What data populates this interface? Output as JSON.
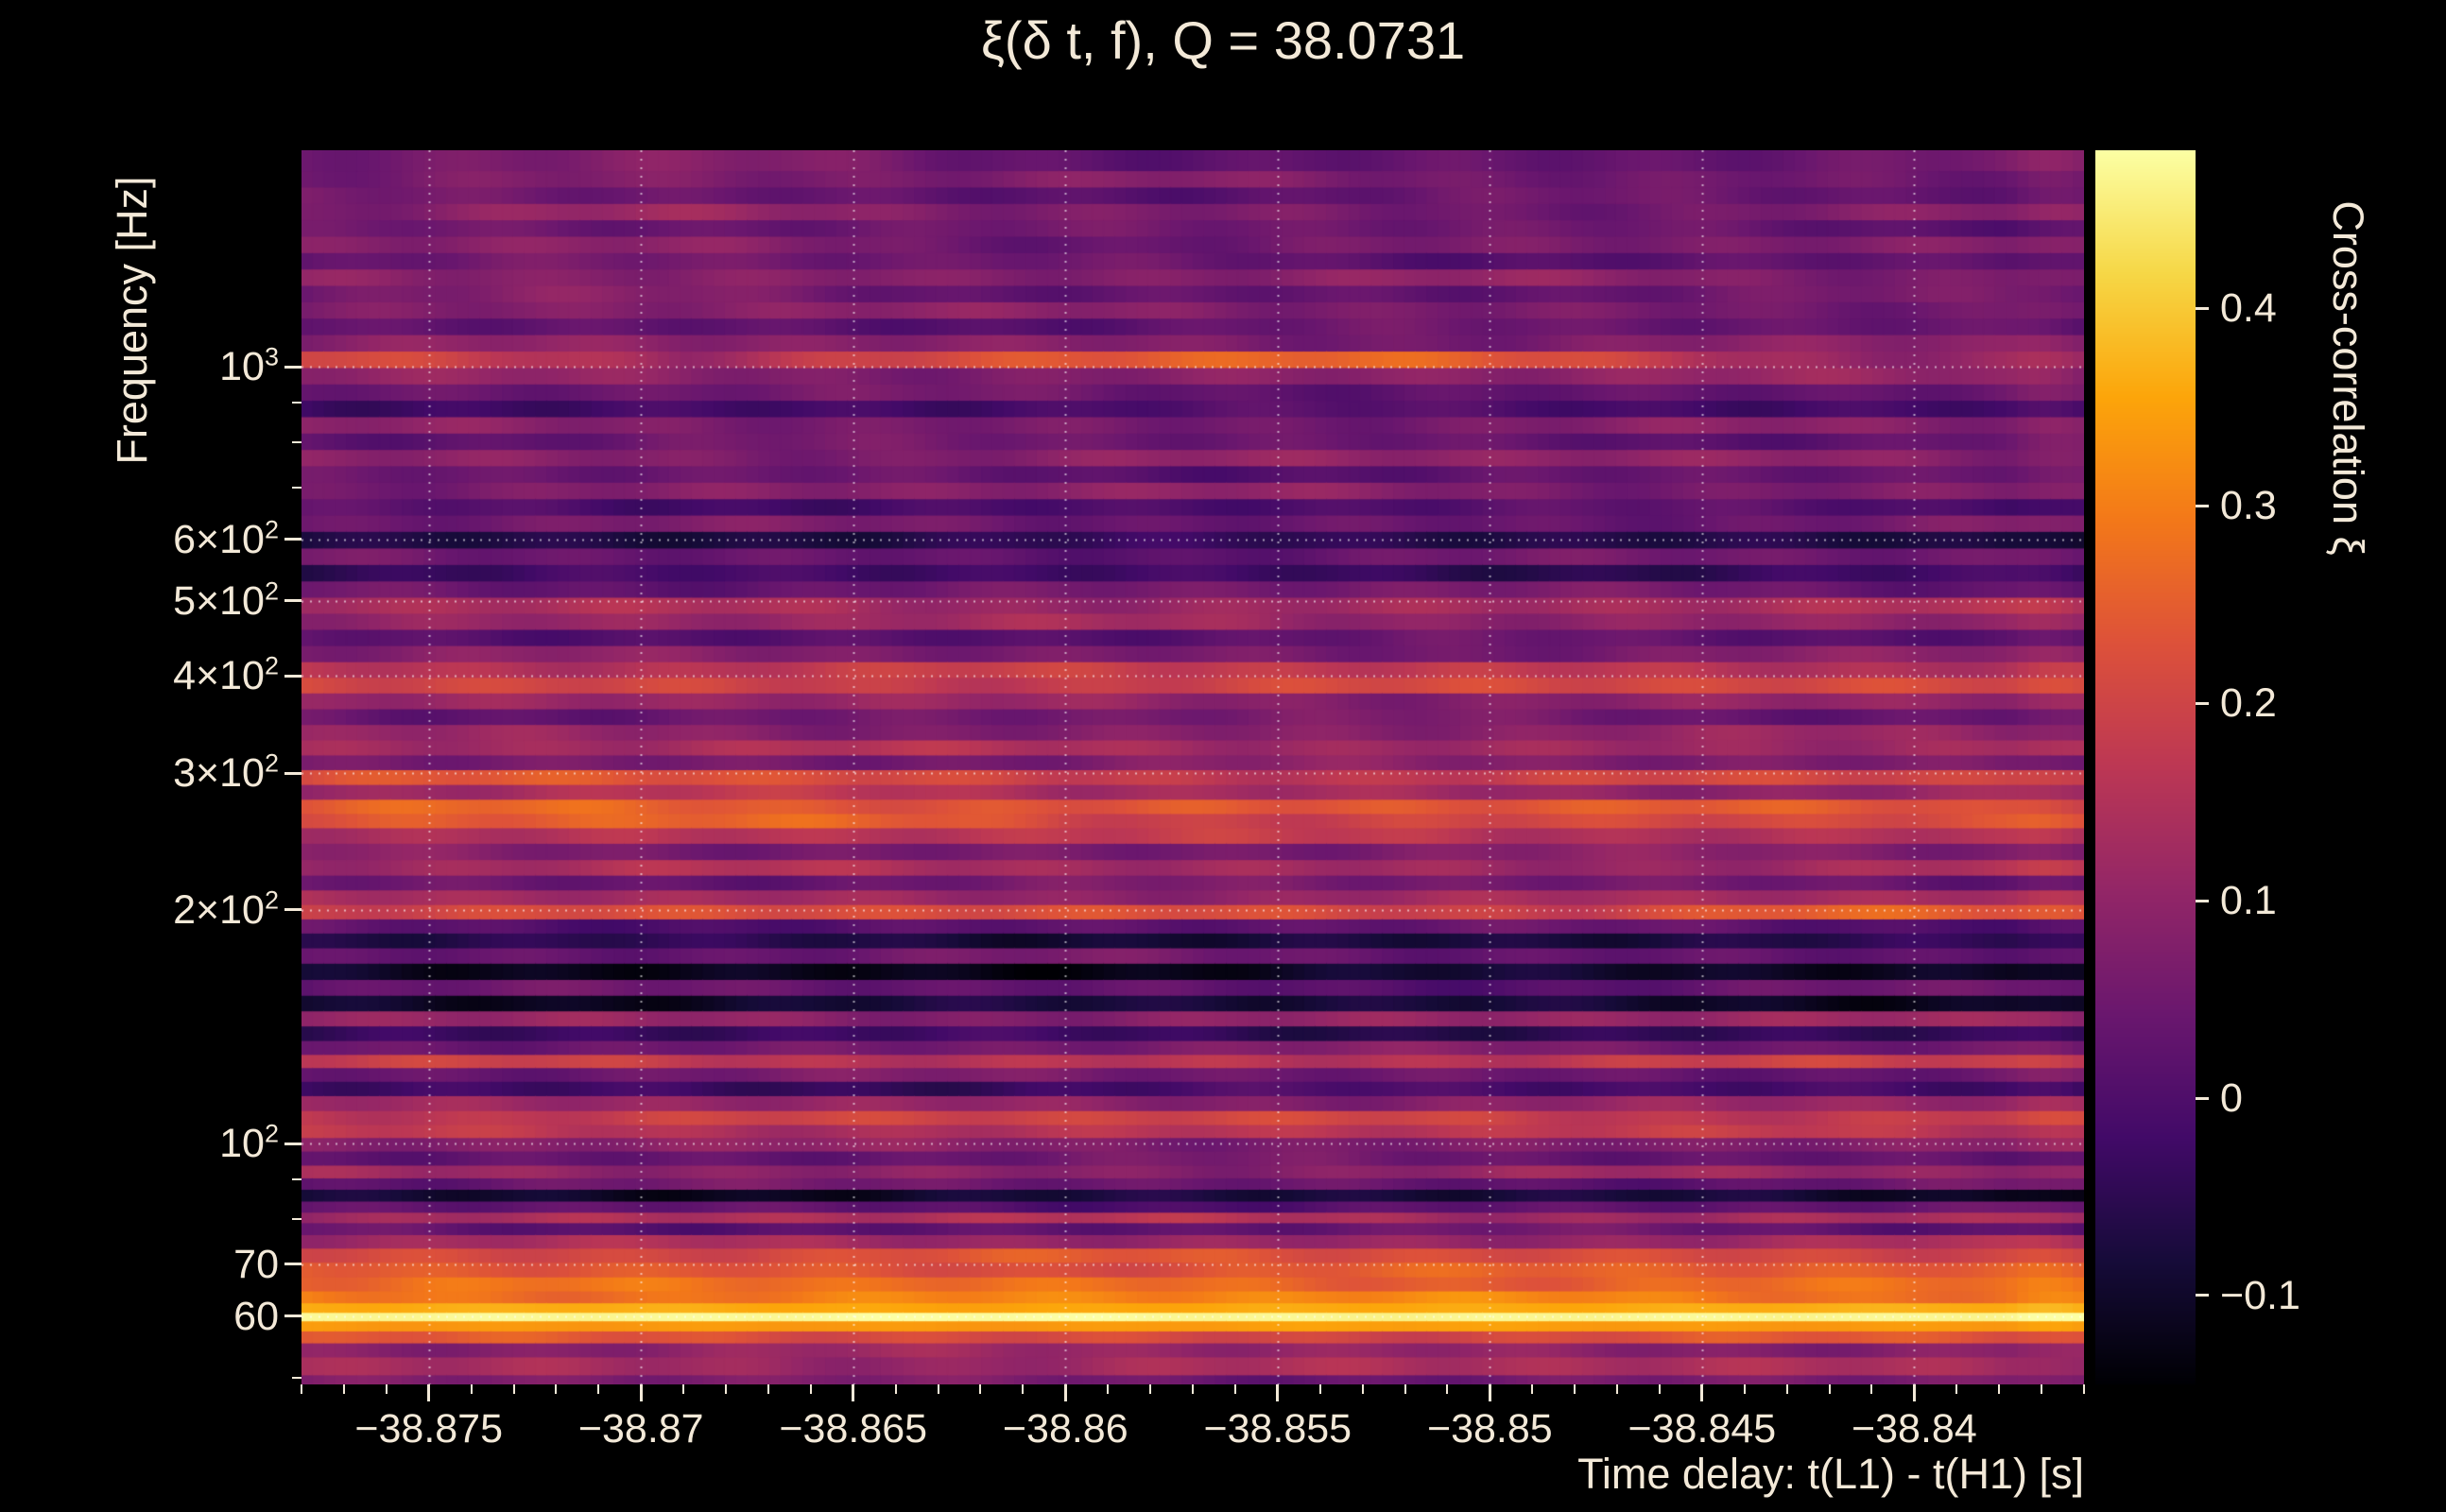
{
  "colors": {
    "background": "#000000",
    "text": "#f3e9d8",
    "grid": "rgba(255,255,255,0.62)"
  },
  "chart_data": {
    "type": "heatmap",
    "title": "ξ(δ t, f), Q = 38.0731",
    "xlabel": "Time delay: t(L1) - t(H1) [s]",
    "ylabel": "Frequency [Hz]",
    "colorbar_label": "Cross-correlation ξ",
    "xlim": [
      -38.878,
      -38.836
    ],
    "ylim": [
      49,
      1900
    ],
    "yscale": "log",
    "grid": true,
    "vmin": -0.145,
    "vmax": 0.48,
    "x_ticks": [
      {
        "v": -38.875,
        "label": "−38.875"
      },
      {
        "v": -38.87,
        "label": "−38.87"
      },
      {
        "v": -38.865,
        "label": "−38.865"
      },
      {
        "v": -38.86,
        "label": "−38.86"
      },
      {
        "v": -38.855,
        "label": "−38.855"
      },
      {
        "v": -38.85,
        "label": "−38.85"
      },
      {
        "v": -38.845,
        "label": "−38.845"
      },
      {
        "v": -38.84,
        "label": "−38.84"
      }
    ],
    "x_minor_step": 0.001,
    "y_ticks": [
      {
        "v": 1000,
        "m": "10",
        "e": "3"
      },
      {
        "v": 600,
        "m": "6×10",
        "e": "2"
      },
      {
        "v": 500,
        "m": "5×10",
        "e": "2"
      },
      {
        "v": 400,
        "m": "4×10",
        "e": "2"
      },
      {
        "v": 300,
        "m": "3×10",
        "e": "2"
      },
      {
        "v": 200,
        "m": "2×10",
        "e": "2"
      },
      {
        "v": 100,
        "m": "10",
        "e": "2"
      },
      {
        "v": 70,
        "m": "70",
        "e": ""
      },
      {
        "v": 60,
        "m": "60",
        "e": ""
      }
    ],
    "y_minor_ticks": [
      50,
      80,
      90,
      700,
      800,
      900
    ],
    "colorbar_ticks": [
      {
        "v": 0.4,
        "label": "0.4"
      },
      {
        "v": 0.3,
        "label": "0.3"
      },
      {
        "v": 0.2,
        "label": "0.2"
      },
      {
        "v": 0.1,
        "label": "0.1"
      },
      {
        "v": 0.0,
        "label": "0"
      },
      {
        "v": -0.1,
        "label": "−0.1"
      }
    ],
    "colormap": [
      [
        0.0,
        0,
        0,
        4
      ],
      [
        0.1,
        22,
        11,
        57
      ],
      [
        0.2,
        66,
        10,
        104
      ],
      [
        0.3,
        106,
        23,
        110
      ],
      [
        0.4,
        147,
        38,
        103
      ],
      [
        0.5,
        188,
        55,
        84
      ],
      [
        0.6,
        221,
        81,
        58
      ],
      [
        0.7,
        243,
        120,
        25
      ],
      [
        0.8,
        252,
        165,
        10
      ],
      [
        0.9,
        246,
        215,
        70
      ],
      [
        1.0,
        252,
        255,
        164
      ]
    ],
    "bands": [
      [
        49,
        0.06
      ],
      [
        52,
        0.13
      ],
      [
        54.5,
        0.1
      ],
      [
        56.5,
        0.22
      ],
      [
        58.5,
        0.34
      ],
      [
        60,
        0.47
      ],
      [
        61.5,
        0.36
      ],
      [
        63.5,
        0.3
      ],
      [
        66,
        0.27
      ],
      [
        69,
        0.24
      ],
      [
        72,
        0.22
      ],
      [
        75,
        0.12
      ],
      [
        78,
        0.03
      ],
      [
        80.5,
        0.14
      ],
      [
        83,
        0.02
      ],
      [
        86,
        -0.09
      ],
      [
        89,
        0.04
      ],
      [
        92,
        0.1
      ],
      [
        96,
        0.04
      ],
      [
        100,
        0.08
      ],
      [
        104,
        0.16
      ],
      [
        108,
        0.19
      ],
      [
        113,
        0.1
      ],
      [
        118,
        -0.02
      ],
      [
        123,
        0.05
      ],
      [
        128,
        0.17
      ],
      [
        133,
        0.06
      ],
      [
        139,
        -0.04
      ],
      [
        145,
        0.1
      ],
      [
        152,
        -0.09
      ],
      [
        159,
        0.03
      ],
      [
        167,
        -0.11
      ],
      [
        175,
        0.04
      ],
      [
        183,
        -0.07
      ],
      [
        191,
        0.02
      ],
      [
        199,
        0.21
      ],
      [
        208,
        0.12
      ],
      [
        217,
        0.05
      ],
      [
        227,
        0.13
      ],
      [
        238,
        0.07
      ],
      [
        250,
        0.16
      ],
      [
        261,
        0.21
      ],
      [
        272,
        0.23
      ],
      [
        284,
        0.12
      ],
      [
        297,
        0.19
      ],
      [
        310,
        0.07
      ],
      [
        324,
        0.13
      ],
      [
        339,
        0.09
      ],
      [
        355,
        0.05
      ],
      [
        372,
        0.1
      ],
      [
        390,
        0.2
      ],
      [
        408,
        0.17
      ],
      [
        428,
        0.07
      ],
      [
        449,
        0.02
      ],
      [
        471,
        0.11
      ],
      [
        494,
        0.13
      ],
      [
        518,
        0.05
      ],
      [
        544,
        -0.03
      ],
      [
        571,
        0.04
      ],
      [
        600,
        -0.06
      ],
      [
        630,
        0.05
      ],
      [
        661,
        0.0
      ],
      [
        694,
        0.08
      ],
      [
        729,
        0.03
      ],
      [
        765,
        0.09
      ],
      [
        803,
        0.04
      ],
      [
        843,
        0.07
      ],
      [
        885,
        -0.01
      ],
      [
        929,
        0.04
      ],
      [
        975,
        0.09
      ],
      [
        1024,
        0.12
      ],
      [
        1075,
        0.08
      ],
      [
        1129,
        0.03
      ],
      [
        1185,
        0.07
      ],
      [
        1244,
        0.04
      ],
      [
        1306,
        0.08
      ],
      [
        1371,
        0.03
      ],
      [
        1439,
        0.06
      ],
      [
        1511,
        0.04
      ],
      [
        1586,
        0.07
      ],
      [
        1665,
        0.03
      ],
      [
        1748,
        0.06
      ],
      [
        1835,
        0.04
      ]
    ],
    "overlays": [
      [
        990,
        1060,
        -38.869,
        -38.841,
        0.13
      ],
      [
        985,
        1055,
        -38.884,
        -38.869,
        0.11
      ],
      [
        1150,
        1900,
        -38.879,
        -38.863,
        0.025
      ],
      [
        255,
        300,
        -38.879,
        -38.86,
        0.04
      ],
      [
        193,
        206,
        -38.848,
        -38.836,
        0.05
      ],
      [
        49,
        1900,
        -38.8378,
        -38.836,
        0.015
      ]
    ],
    "noise_amp": [
      0.015,
      0.012,
      0.018
    ]
  }
}
